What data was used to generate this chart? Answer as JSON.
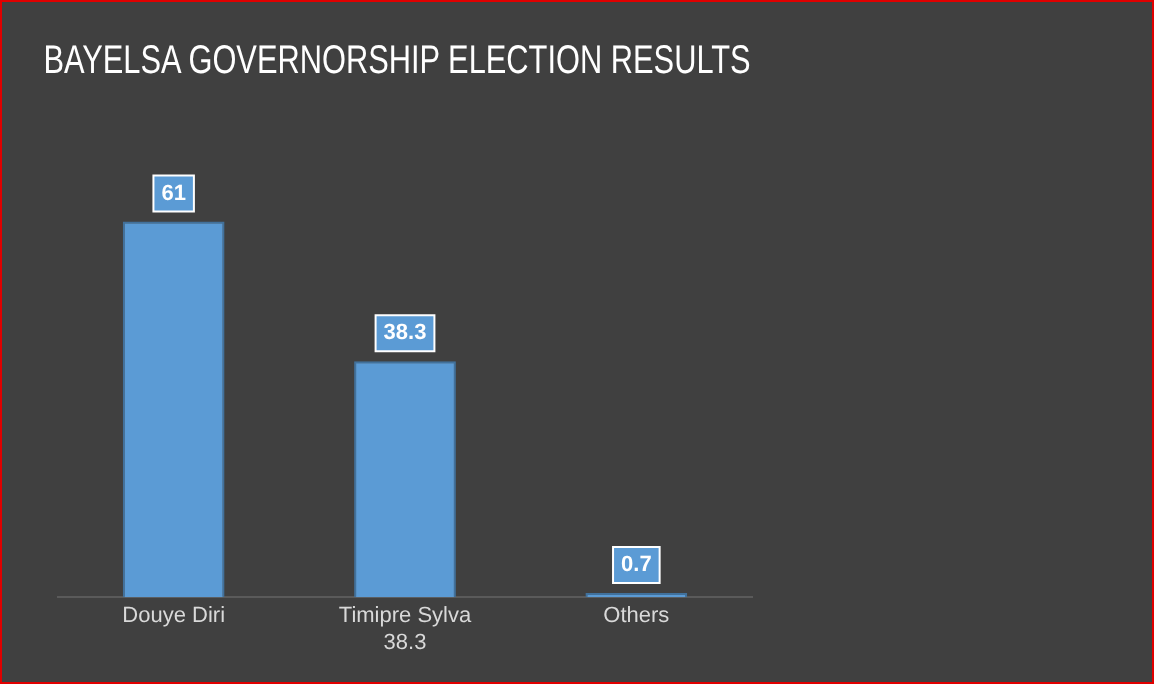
{
  "chart_data": {
    "type": "bar",
    "title": "BAYELSA GOVERNORSHIP ELECTION RESULTS",
    "categories": [
      "Douye Diri",
      "Timipre Sylva\n38.3",
      "Others"
    ],
    "values": [
      61,
      38.3,
      0.7
    ],
    "color": "#5b9bd5",
    "data_labels": true,
    "grid": false,
    "legend": false
  }
}
